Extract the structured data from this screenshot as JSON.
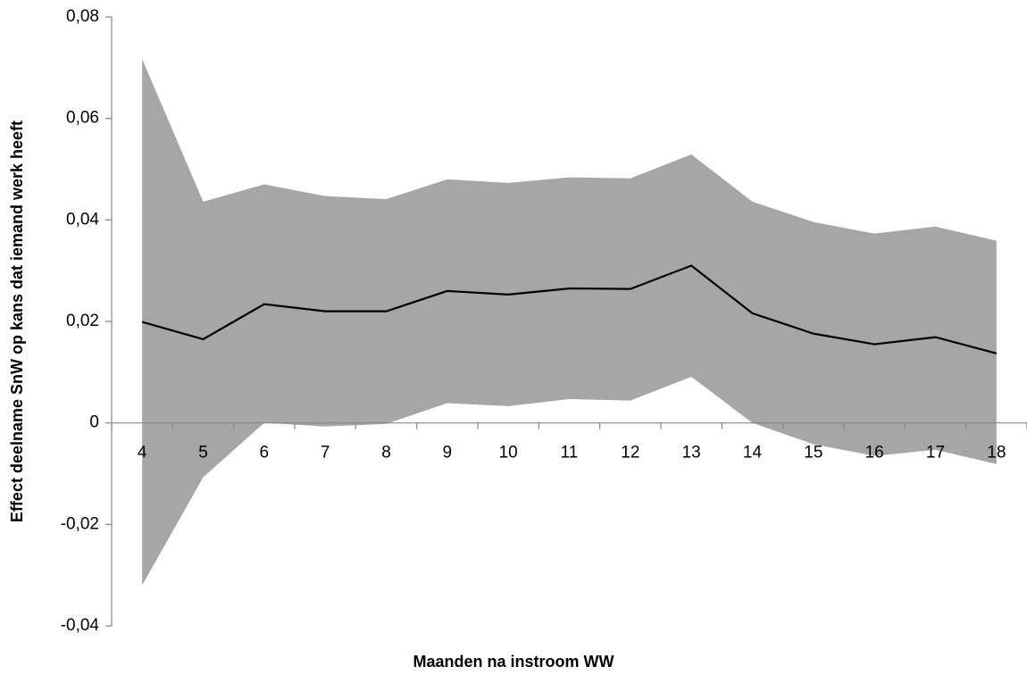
{
  "chart_data": {
    "type": "line",
    "x_label": "Maanden na instroom WW",
    "y_label": "Effect deelname SnW op kans dat iemand werk heeft",
    "categories": [
      "4",
      "5",
      "6",
      "7",
      "8",
      "9",
      "10",
      "11",
      "12",
      "13",
      "14",
      "15",
      "16",
      "17",
      "18"
    ],
    "values": [
      0.0199,
      0.0165,
      0.0234,
      0.022,
      0.022,
      0.026,
      0.0253,
      0.0265,
      0.0264,
      0.031,
      0.0216,
      0.0176,
      0.0155,
      0.0169,
      0.0137
    ],
    "upper": [
      0.0717,
      0.0436,
      0.047,
      0.0447,
      0.0441,
      0.048,
      0.0473,
      0.0484,
      0.0482,
      0.0529,
      0.0436,
      0.0396,
      0.0373,
      0.0387,
      0.0359
    ],
    "lower": [
      -0.032,
      -0.0107,
      0.0,
      -0.0007,
      -0.0002,
      0.0039,
      0.0033,
      0.0047,
      0.0044,
      0.0091,
      0.0,
      -0.0042,
      -0.0065,
      -0.0053,
      -0.0081
    ],
    "color": "#000000",
    "band_color": "#a6a6a6",
    "ylim": [
      -0.04,
      0.08
    ],
    "yticks": [
      {
        "value": -0.04,
        "label": "-0,04"
      },
      {
        "value": -0.02,
        "label": "-0,02"
      },
      0,
      {
        "value": 0.02,
        "label": "0,02"
      },
      {
        "value": 0.04,
        "label": "0,04"
      },
      {
        "value": 0.06,
        "label": "0,06"
      },
      {
        "value": 0.08,
        "label": "0,08"
      }
    ]
  }
}
